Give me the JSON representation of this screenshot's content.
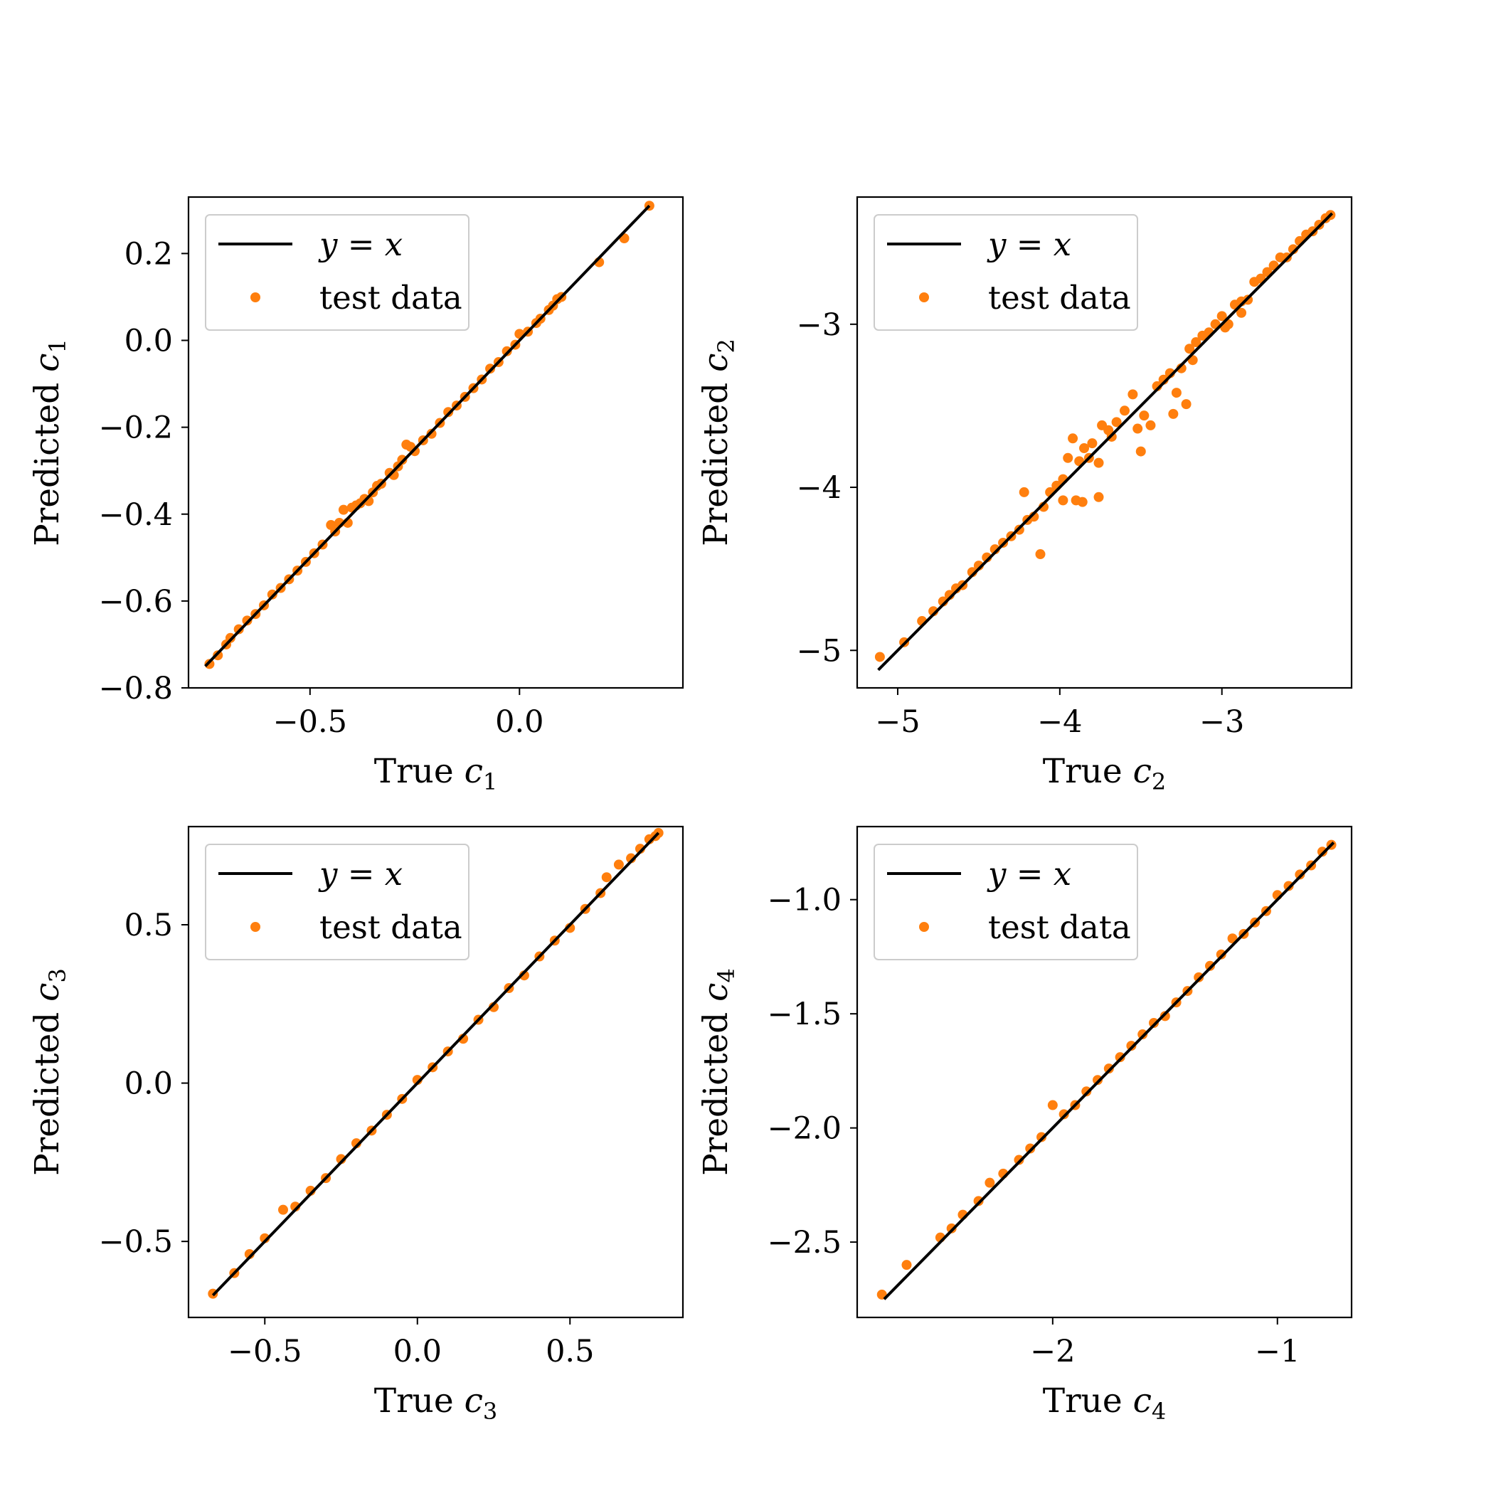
{
  "figure": {
    "background": "#ffffff",
    "line_color": "#000000",
    "point_color": "#ff7f0e"
  },
  "legend": {
    "line_label": "y = x",
    "points_label": "test data"
  },
  "chart_data": [
    {
      "type": "scatter",
      "xlabel": "True c1",
      "ylabel": "Predicted c1",
      "xlabel_main": "True",
      "ylabel_main": "Predicted",
      "symbol": "c",
      "subscript": "1",
      "xlim": [
        -0.79,
        0.39
      ],
      "ylim": [
        -0.8,
        0.33
      ],
      "xticks": [
        -0.5,
        0.0
      ],
      "xtick_labels": [
        "−0.5",
        "0.0"
      ],
      "yticks": [
        -0.8,
        -0.6,
        -0.4,
        -0.2,
        0.0,
        0.2
      ],
      "ytick_labels": [
        "−0.8",
        "−0.6",
        "−0.4",
        "−0.2",
        "0.0",
        "0.2"
      ],
      "legend_position": "upper-left",
      "series": [
        {
          "kind": "line",
          "x": [
            -0.75,
            0.31
          ],
          "y": [
            -0.75,
            0.31
          ]
        },
        {
          "kind": "points",
          "x": [
            -0.74,
            -0.72,
            -0.7,
            -0.69,
            -0.67,
            -0.65,
            -0.63,
            -0.61,
            -0.59,
            -0.57,
            -0.55,
            -0.53,
            -0.51,
            -0.49,
            -0.47,
            -0.45,
            -0.44,
            -0.43,
            -0.42,
            -0.41,
            -0.4,
            -0.39,
            -0.38,
            -0.37,
            -0.36,
            -0.35,
            -0.34,
            -0.33,
            -0.31,
            -0.3,
            -0.29,
            -0.28,
            -0.27,
            -0.26,
            -0.25,
            -0.23,
            -0.21,
            -0.19,
            -0.17,
            -0.15,
            -0.13,
            -0.11,
            -0.09,
            -0.07,
            -0.05,
            -0.03,
            -0.01,
            0.0,
            0.02,
            0.04,
            0.05,
            0.07,
            0.08,
            0.09,
            0.1,
            0.19,
            0.25,
            0.31
          ],
          "y": [
            -0.745,
            -0.725,
            -0.7,
            -0.685,
            -0.665,
            -0.645,
            -0.63,
            -0.61,
            -0.585,
            -0.57,
            -0.55,
            -0.53,
            -0.51,
            -0.49,
            -0.47,
            -0.425,
            -0.44,
            -0.42,
            -0.39,
            -0.42,
            -0.385,
            -0.38,
            -0.375,
            -0.365,
            -0.37,
            -0.35,
            -0.335,
            -0.33,
            -0.305,
            -0.31,
            -0.29,
            -0.275,
            -0.24,
            -0.245,
            -0.255,
            -0.23,
            -0.215,
            -0.19,
            -0.165,
            -0.15,
            -0.13,
            -0.11,
            -0.09,
            -0.065,
            -0.05,
            -0.025,
            -0.01,
            0.015,
            0.02,
            0.04,
            0.05,
            0.07,
            0.08,
            0.095,
            0.1,
            0.18,
            0.235,
            0.31
          ]
        }
      ]
    },
    {
      "type": "scatter",
      "xlabel": "True c2",
      "ylabel": "Predicted c2",
      "xlabel_main": "True",
      "ylabel_main": "Predicted",
      "symbol": "c",
      "subscript": "2",
      "xlim": [
        -5.25,
        -2.2
      ],
      "ylim": [
        -5.23,
        -2.22
      ],
      "xticks": [
        -5,
        -4,
        -3
      ],
      "xtick_labels": [
        "−5",
        "−4",
        "−3"
      ],
      "yticks": [
        -5,
        -4,
        -3
      ],
      "ytick_labels": [
        "−5",
        "−4",
        "−3"
      ],
      "legend_position": "upper-left",
      "series": [
        {
          "kind": "line",
          "x": [
            -5.12,
            -2.32
          ],
          "y": [
            -5.12,
            -2.32
          ]
        },
        {
          "kind": "points",
          "x": [
            -5.11,
            -4.96,
            -4.85,
            -4.78,
            -4.72,
            -4.68,
            -4.64,
            -4.6,
            -4.54,
            -4.5,
            -4.45,
            -4.4,
            -4.35,
            -4.3,
            -4.25,
            -4.22,
            -4.2,
            -4.16,
            -4.12,
            -4.1,
            -4.06,
            -4.02,
            -3.98,
            -3.95,
            -3.92,
            -3.9,
            -3.88,
            -3.85,
            -3.82,
            -3.8,
            -3.76,
            -3.74,
            -3.7,
            -3.68,
            -3.65,
            -3.6,
            -3.55,
            -3.5,
            -3.48,
            -3.44,
            -3.4,
            -3.36,
            -3.32,
            -3.28,
            -3.25,
            -3.2,
            -3.16,
            -3.12,
            -3.08,
            -3.04,
            -3.0,
            -2.96,
            -2.92,
            -2.88,
            -2.84,
            -2.8,
            -2.76,
            -2.72,
            -2.68,
            -2.64,
            -2.6,
            -2.56,
            -2.52,
            -2.48,
            -2.44,
            -2.4,
            -2.36,
            -2.33,
            -3.76,
            -3.86,
            -3.98,
            -3.52,
            -3.3,
            -3.22,
            -3.18,
            -2.98,
            -2.88
          ],
          "y": [
            -5.04,
            -4.95,
            -4.82,
            -4.76,
            -4.7,
            -4.66,
            -4.62,
            -4.6,
            -4.52,
            -4.48,
            -4.43,
            -4.38,
            -4.34,
            -4.3,
            -4.26,
            -4.03,
            -4.2,
            -4.18,
            -4.41,
            -4.12,
            -4.03,
            -3.99,
            -3.95,
            -3.82,
            -3.7,
            -4.08,
            -3.84,
            -3.76,
            -3.82,
            -3.73,
            -4.06,
            -3.62,
            -3.65,
            -3.69,
            -3.6,
            -3.53,
            -3.43,
            -3.78,
            -3.56,
            -3.62,
            -3.38,
            -3.34,
            -3.3,
            -3.42,
            -3.27,
            -3.15,
            -3.11,
            -3.07,
            -3.05,
            -3.0,
            -2.95,
            -3.0,
            -2.88,
            -2.86,
            -2.85,
            -2.74,
            -2.72,
            -2.68,
            -2.64,
            -2.59,
            -2.59,
            -2.54,
            -2.49,
            -2.45,
            -2.43,
            -2.39,
            -2.35,
            -2.33,
            -3.85,
            -4.09,
            -4.08,
            -3.64,
            -3.55,
            -3.49,
            -3.22,
            -3.02,
            -2.93
          ]
        }
      ]
    },
    {
      "type": "scatter",
      "xlabel": "True c3",
      "ylabel": "Predicted c3",
      "xlabel_main": "True",
      "ylabel_main": "Predicted",
      "symbol": "c",
      "subscript": "3",
      "xlim": [
        -0.75,
        0.87
      ],
      "ylim": [
        -0.74,
        0.81
      ],
      "xticks": [
        -0.5,
        0.0,
        0.5
      ],
      "xtick_labels": [
        "−0.5",
        "0.0",
        "0.5"
      ],
      "yticks": [
        -0.5,
        0.0,
        0.5
      ],
      "ytick_labels": [
        "−0.5",
        "0.0",
        "0.5"
      ],
      "legend_position": "upper-left",
      "series": [
        {
          "kind": "line",
          "x": [
            -0.67,
            0.79
          ],
          "y": [
            -0.67,
            0.79
          ]
        },
        {
          "kind": "points",
          "x": [
            -0.67,
            -0.6,
            -0.55,
            -0.5,
            -0.44,
            -0.4,
            -0.35,
            -0.3,
            -0.25,
            -0.2,
            -0.15,
            -0.1,
            -0.05,
            0.0,
            0.05,
            0.1,
            0.15,
            0.2,
            0.25,
            0.3,
            0.35,
            0.4,
            0.45,
            0.5,
            0.55,
            0.6,
            0.62,
            0.66,
            0.7,
            0.73,
            0.76,
            0.78,
            0.79
          ],
          "y": [
            -0.665,
            -0.6,
            -0.54,
            -0.49,
            -0.4,
            -0.39,
            -0.34,
            -0.3,
            -0.24,
            -0.19,
            -0.15,
            -0.1,
            -0.05,
            0.01,
            0.05,
            0.1,
            0.14,
            0.2,
            0.24,
            0.3,
            0.34,
            0.4,
            0.45,
            0.49,
            0.55,
            0.6,
            0.65,
            0.69,
            0.71,
            0.74,
            0.77,
            0.78,
            0.79
          ]
        }
      ]
    },
    {
      "type": "scatter",
      "xlabel": "True c4",
      "ylabel": "Predicted c4",
      "xlabel_main": "True",
      "ylabel_main": "Predicted",
      "symbol": "c",
      "subscript": "4",
      "xlim": [
        -2.87,
        -0.67
      ],
      "ylim": [
        -2.83,
        -0.68
      ],
      "xticks": [
        -2,
        -1
      ],
      "xtick_labels": [
        "−2",
        "−1"
      ],
      "yticks": [
        -2.5,
        -2.0,
        -1.5,
        -1.0
      ],
      "ytick_labels": [
        "−2.5",
        "−2.0",
        "−1.5",
        "−1.0"
      ],
      "legend_position": "upper-left",
      "series": [
        {
          "kind": "line",
          "x": [
            -2.75,
            -0.75
          ],
          "y": [
            -2.75,
            -0.75
          ]
        },
        {
          "kind": "points",
          "x": [
            -2.76,
            -2.65,
            -2.5,
            -2.45,
            -2.4,
            -2.33,
            -2.28,
            -2.22,
            -2.15,
            -2.1,
            -2.05,
            -2.0,
            -1.95,
            -1.9,
            -1.85,
            -1.8,
            -1.75,
            -1.7,
            -1.65,
            -1.6,
            -1.55,
            -1.5,
            -1.45,
            -1.4,
            -1.35,
            -1.3,
            -1.25,
            -1.2,
            -1.15,
            -1.1,
            -1.05,
            -1.0,
            -0.95,
            -0.9,
            -0.85,
            -0.8,
            -0.76
          ],
          "y": [
            -2.73,
            -2.6,
            -2.48,
            -2.44,
            -2.38,
            -2.32,
            -2.24,
            -2.2,
            -2.14,
            -2.09,
            -2.04,
            -1.9,
            -1.94,
            -1.9,
            -1.84,
            -1.79,
            -1.74,
            -1.69,
            -1.64,
            -1.59,
            -1.54,
            -1.51,
            -1.45,
            -1.4,
            -1.34,
            -1.29,
            -1.24,
            -1.17,
            -1.15,
            -1.1,
            -1.05,
            -0.98,
            -0.94,
            -0.89,
            -0.85,
            -0.79,
            -0.76
          ]
        }
      ]
    }
  ]
}
